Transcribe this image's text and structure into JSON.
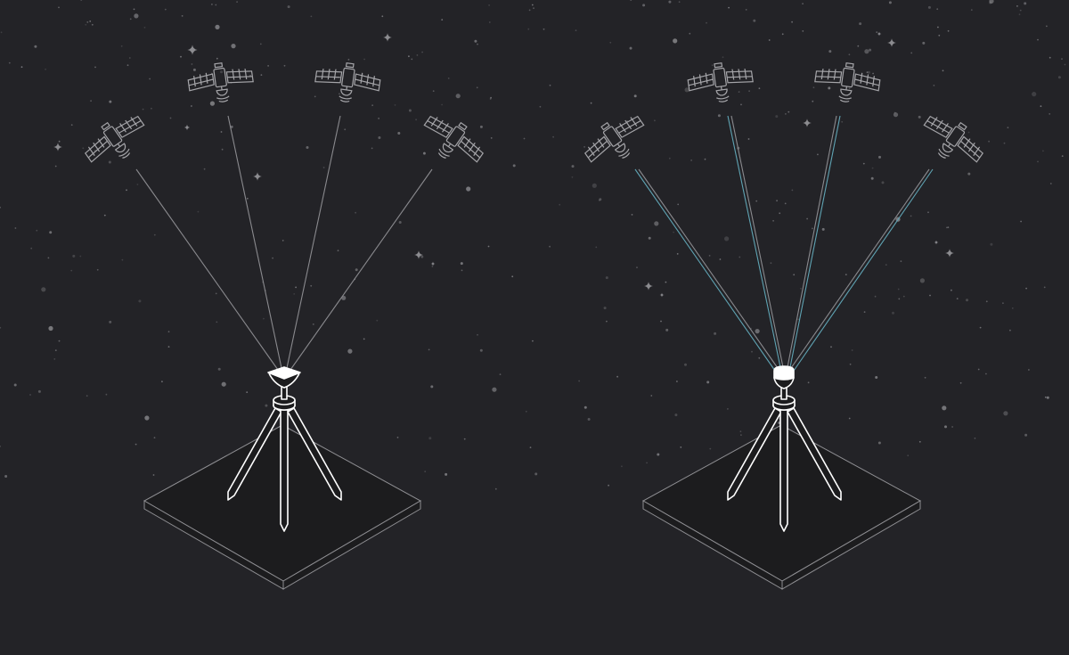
{
  "scene": {
    "background": "#232327",
    "panels": [
      {
        "id": "single",
        "signal_colors": [
          "#8a8a8e"
        ],
        "receiver_icon": "gnss-receiver-icon",
        "satellites": [
          "satellite-icon",
          "satellite-icon",
          "satellite-icon",
          "satellite-icon"
        ]
      },
      {
        "id": "dual",
        "signal_colors": [
          "#8a8a8e",
          "#5fa3b3"
        ],
        "receiver_icon": "gnss-receiver-icon",
        "satellites": [
          "satellite-icon",
          "satellite-icon",
          "satellite-icon",
          "satellite-icon"
        ]
      }
    ],
    "colors": {
      "line": "#ffffff",
      "satellite": "#a5a5a9",
      "signal_gray": "#8a8a8e",
      "signal_teal": "#5fa3b3",
      "platform_fill": "#1c1c1e",
      "platform_edge": "#8e8e92",
      "star": "#8c8c90"
    },
    "icons": [
      "satellite-icon",
      "gnss-receiver-icon",
      "tripod-icon",
      "sparkle-icon"
    ]
  }
}
